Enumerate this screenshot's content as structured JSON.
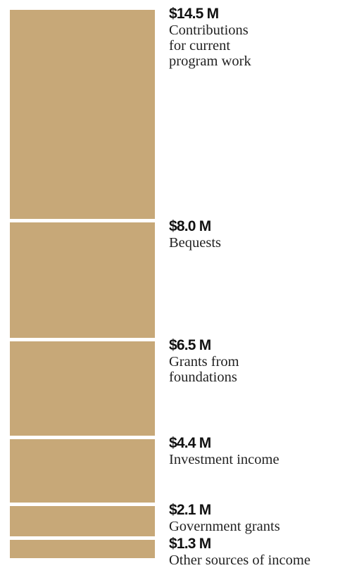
{
  "chart_data": {
    "type": "bar",
    "orientation": "stacked-vertical",
    "color": "#c7a878",
    "categories": [
      "Contributions\nfor current\nprogram work",
      "Bequests",
      "Grants from\nfoundations",
      "Investment income",
      "Government grants",
      "Other sources of income"
    ],
    "values": [
      14.5,
      8.0,
      6.5,
      4.4,
      2.1,
      1.3
    ],
    "value_labels": [
      "$14.5 M",
      "$8.0 M",
      "$6.5 M",
      "$4.4 M",
      "$2.1 M",
      "$1.3 M"
    ],
    "unit": "$M",
    "legend": "none",
    "grid": false
  }
}
